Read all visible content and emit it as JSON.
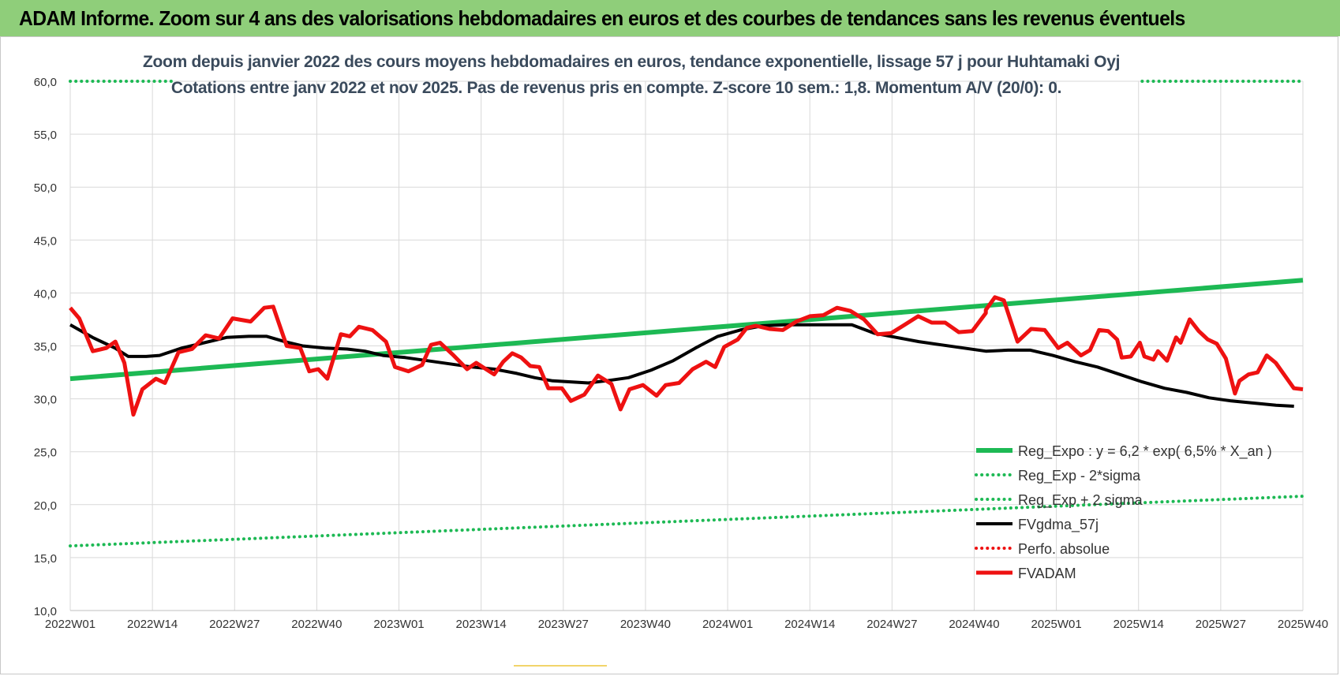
{
  "header": {
    "title": "ADAM Informe. Zoom sur 4 ans des valorisations hebdomadaires en euros et des courbes de tendances sans les revenus éventuels"
  },
  "chart_data": {
    "type": "line",
    "title": "Zoom depuis janvier 2022 des cours moyens hebdomadaires en euros, tendance exponentielle, lissage 57 j pour Huhtamaki Oyj",
    "subtitle": "Cotations entre janv 2022 et nov 2025. Pas de revenus pris en compte. Z-score 10 sem.: 1,8. Momentum A/V (20/0): 0.",
    "ylim": [
      10,
      60
    ],
    "y_ticks": [
      "10,0",
      "15,0",
      "20,0",
      "25,0",
      "30,0",
      "35,0",
      "40,0",
      "45,0",
      "50,0",
      "55,0",
      "60,0"
    ],
    "x_ticks": [
      "2022W01",
      "2022W14",
      "2022W27",
      "2022W40",
      "2023W01",
      "2023W14",
      "2023W27",
      "2023W40",
      "2024W01",
      "2024W14",
      "2024W27",
      "2024W40",
      "2025W01",
      "2025W14",
      "2025W27",
      "2025W40"
    ],
    "x_count": 204,
    "grid": true,
    "legend_position": "bottom-right",
    "colors": {
      "green": "#1db954",
      "black": "#000000",
      "red": "#ee1111"
    },
    "series": [
      {
        "name": "Reg_Expo : y = 6,2 * exp( 6,5% *  X_an )",
        "style": "thick-green",
        "points": [
          [
            0,
            31.9
          ],
          [
            203,
            41.2
          ]
        ]
      },
      {
        "name": "Reg_Exp - 2*sigma",
        "style": "dotted-green",
        "points": [
          [
            0,
            16.1
          ],
          [
            203,
            20.8
          ]
        ]
      },
      {
        "name": "Reg_Exp + 2 sigma",
        "style": "dotted-green",
        "points": [
          [
            0,
            60
          ],
          [
            23,
            60
          ]
        ],
        "points2": [
          [
            175,
            60
          ],
          [
            203,
            60
          ]
        ]
      },
      {
        "name": "FVgdma_57j",
        "style": "black",
        "points": [
          [
            0,
            37
          ],
          [
            5,
            35.8
          ],
          [
            10,
            34.8
          ],
          [
            13,
            34.0
          ],
          [
            17,
            34.0
          ],
          [
            20,
            34.1
          ],
          [
            25,
            34.8
          ],
          [
            30,
            35.3
          ],
          [
            35,
            35.8
          ],
          [
            40,
            35.9
          ],
          [
            44,
            35.9
          ],
          [
            48,
            35.4
          ],
          [
            52,
            35.0
          ],
          [
            57,
            34.8
          ],
          [
            62,
            34.7
          ],
          [
            66,
            34.5
          ],
          [
            70,
            34.1
          ],
          [
            75,
            33.9
          ],
          [
            80,
            33.6
          ],
          [
            85,
            33.3
          ],
          [
            90,
            33.0
          ],
          [
            95,
            32.8
          ],
          [
            100,
            32.4
          ],
          [
            104,
            32.0
          ],
          [
            108,
            31.7
          ],
          [
            112,
            31.6
          ],
          [
            116,
            31.5
          ],
          [
            120,
            31.7
          ],
          [
            125,
            32.0
          ],
          [
            130,
            32.7
          ],
          [
            135,
            33.6
          ],
          [
            140,
            34.8
          ],
          [
            145,
            35.9
          ],
          [
            150,
            36.5
          ],
          [
            155,
            36.9
          ],
          [
            160,
            37.0
          ],
          [
            165,
            37.0
          ],
          [
            170,
            37.0
          ],
          [
            175,
            37.0
          ],
          [
            180,
            36.2
          ],
          [
            185,
            35.8
          ],
          [
            190,
            35.4
          ],
          [
            195,
            35.1
          ],
          [
            200,
            34.8
          ],
          [
            205,
            34.5
          ],
          [
            210,
            34.6
          ],
          [
            215,
            34.6
          ],
          [
            220,
            34.1
          ],
          [
            225,
            33.5
          ],
          [
            230,
            33.0
          ],
          [
            235,
            32.3
          ],
          [
            240,
            31.6
          ],
          [
            245,
            31.0
          ],
          [
            250,
            30.6
          ],
          [
            255,
            30.1
          ],
          [
            260,
            29.8
          ],
          [
            265,
            29.6
          ],
          [
            270,
            29.4
          ],
          [
            274,
            29.3
          ]
        ]
      },
      {
        "name": "Perfo. absolue",
        "style": "dotted-red",
        "points": []
      },
      {
        "name": "FVADAM",
        "style": "thick-red",
        "points": [
          [
            0,
            38.6
          ],
          [
            2,
            37.6
          ],
          [
            5,
            34.5
          ],
          [
            8,
            34.8
          ],
          [
            10,
            35.4
          ],
          [
            12,
            33.4
          ],
          [
            14,
            28.5
          ],
          [
            16,
            30.9
          ],
          [
            19,
            31.9
          ],
          [
            21,
            31.5
          ],
          [
            24,
            34.4
          ],
          [
            27,
            34.7
          ],
          [
            30,
            36.0
          ],
          [
            33,
            35.7
          ],
          [
            36,
            37.6
          ],
          [
            40,
            37.3
          ],
          [
            43,
            38.6
          ],
          [
            45,
            38.7
          ],
          [
            48,
            35.0
          ],
          [
            51,
            34.8
          ],
          [
            53,
            32.6
          ],
          [
            55,
            32.8
          ],
          [
            57,
            31.9
          ],
          [
            60,
            36.1
          ],
          [
            62,
            35.9
          ],
          [
            64,
            36.8
          ],
          [
            67,
            36.5
          ],
          [
            70,
            35.4
          ],
          [
            72,
            33.0
          ],
          [
            75,
            32.6
          ],
          [
            78,
            33.2
          ],
          [
            80,
            35.1
          ],
          [
            82,
            35.3
          ],
          [
            85,
            34.1
          ],
          [
            88,
            32.8
          ],
          [
            90,
            33.4
          ],
          [
            94,
            32.3
          ],
          [
            96,
            33.5
          ],
          [
            98,
            34.3
          ],
          [
            100,
            33.9
          ],
          [
            102,
            33.1
          ],
          [
            104,
            33.0
          ],
          [
            106,
            31.0
          ],
          [
            109,
            31.0
          ],
          [
            111,
            29.8
          ],
          [
            114,
            30.4
          ],
          [
            117,
            32.2
          ],
          [
            120,
            31.4
          ],
          [
            122,
            29.0
          ],
          [
            124,
            30.9
          ],
          [
            127,
            31.3
          ],
          [
            130,
            30.3
          ],
          [
            132,
            31.3
          ],
          [
            135,
            31.5
          ],
          [
            138,
            32.8
          ],
          [
            141,
            33.5
          ],
          [
            143,
            33.0
          ],
          [
            145,
            34.9
          ],
          [
            148,
            35.6
          ],
          [
            150,
            36.7
          ],
          [
            152,
            36.9
          ],
          [
            155,
            36.6
          ],
          [
            158,
            36.5
          ],
          [
            161,
            37.3
          ],
          [
            164,
            37.8
          ],
          [
            167,
            37.9
          ],
          [
            170,
            38.6
          ],
          [
            173,
            38.3
          ],
          [
            176,
            37.5
          ],
          [
            179,
            36.1
          ],
          [
            182,
            36.2
          ],
          [
            185,
            37.0
          ],
          [
            188,
            37.8
          ],
          [
            191,
            37.2
          ],
          [
            194,
            37.2
          ],
          [
            197,
            36.3
          ],
          [
            200,
            36.4
          ],
          [
            203,
            38.1
          ]
        ]
      }
    ]
  },
  "legend": [
    {
      "label": "Reg_Expo : y = 6,2 * exp( 6,5% *  X_an )",
      "style": "thick-green"
    },
    {
      "label": "Reg_Exp - 2*sigma",
      "style": "dotted-green"
    },
    {
      "label": "Reg_Exp + 2 sigma",
      "style": "dotted-green"
    },
    {
      "label": "FVgdma_57j",
      "style": "black"
    },
    {
      "label": "Perfo. absolue",
      "style": "dotted-red"
    },
    {
      "label": "FVADAM",
      "style": "thick-red"
    }
  ]
}
